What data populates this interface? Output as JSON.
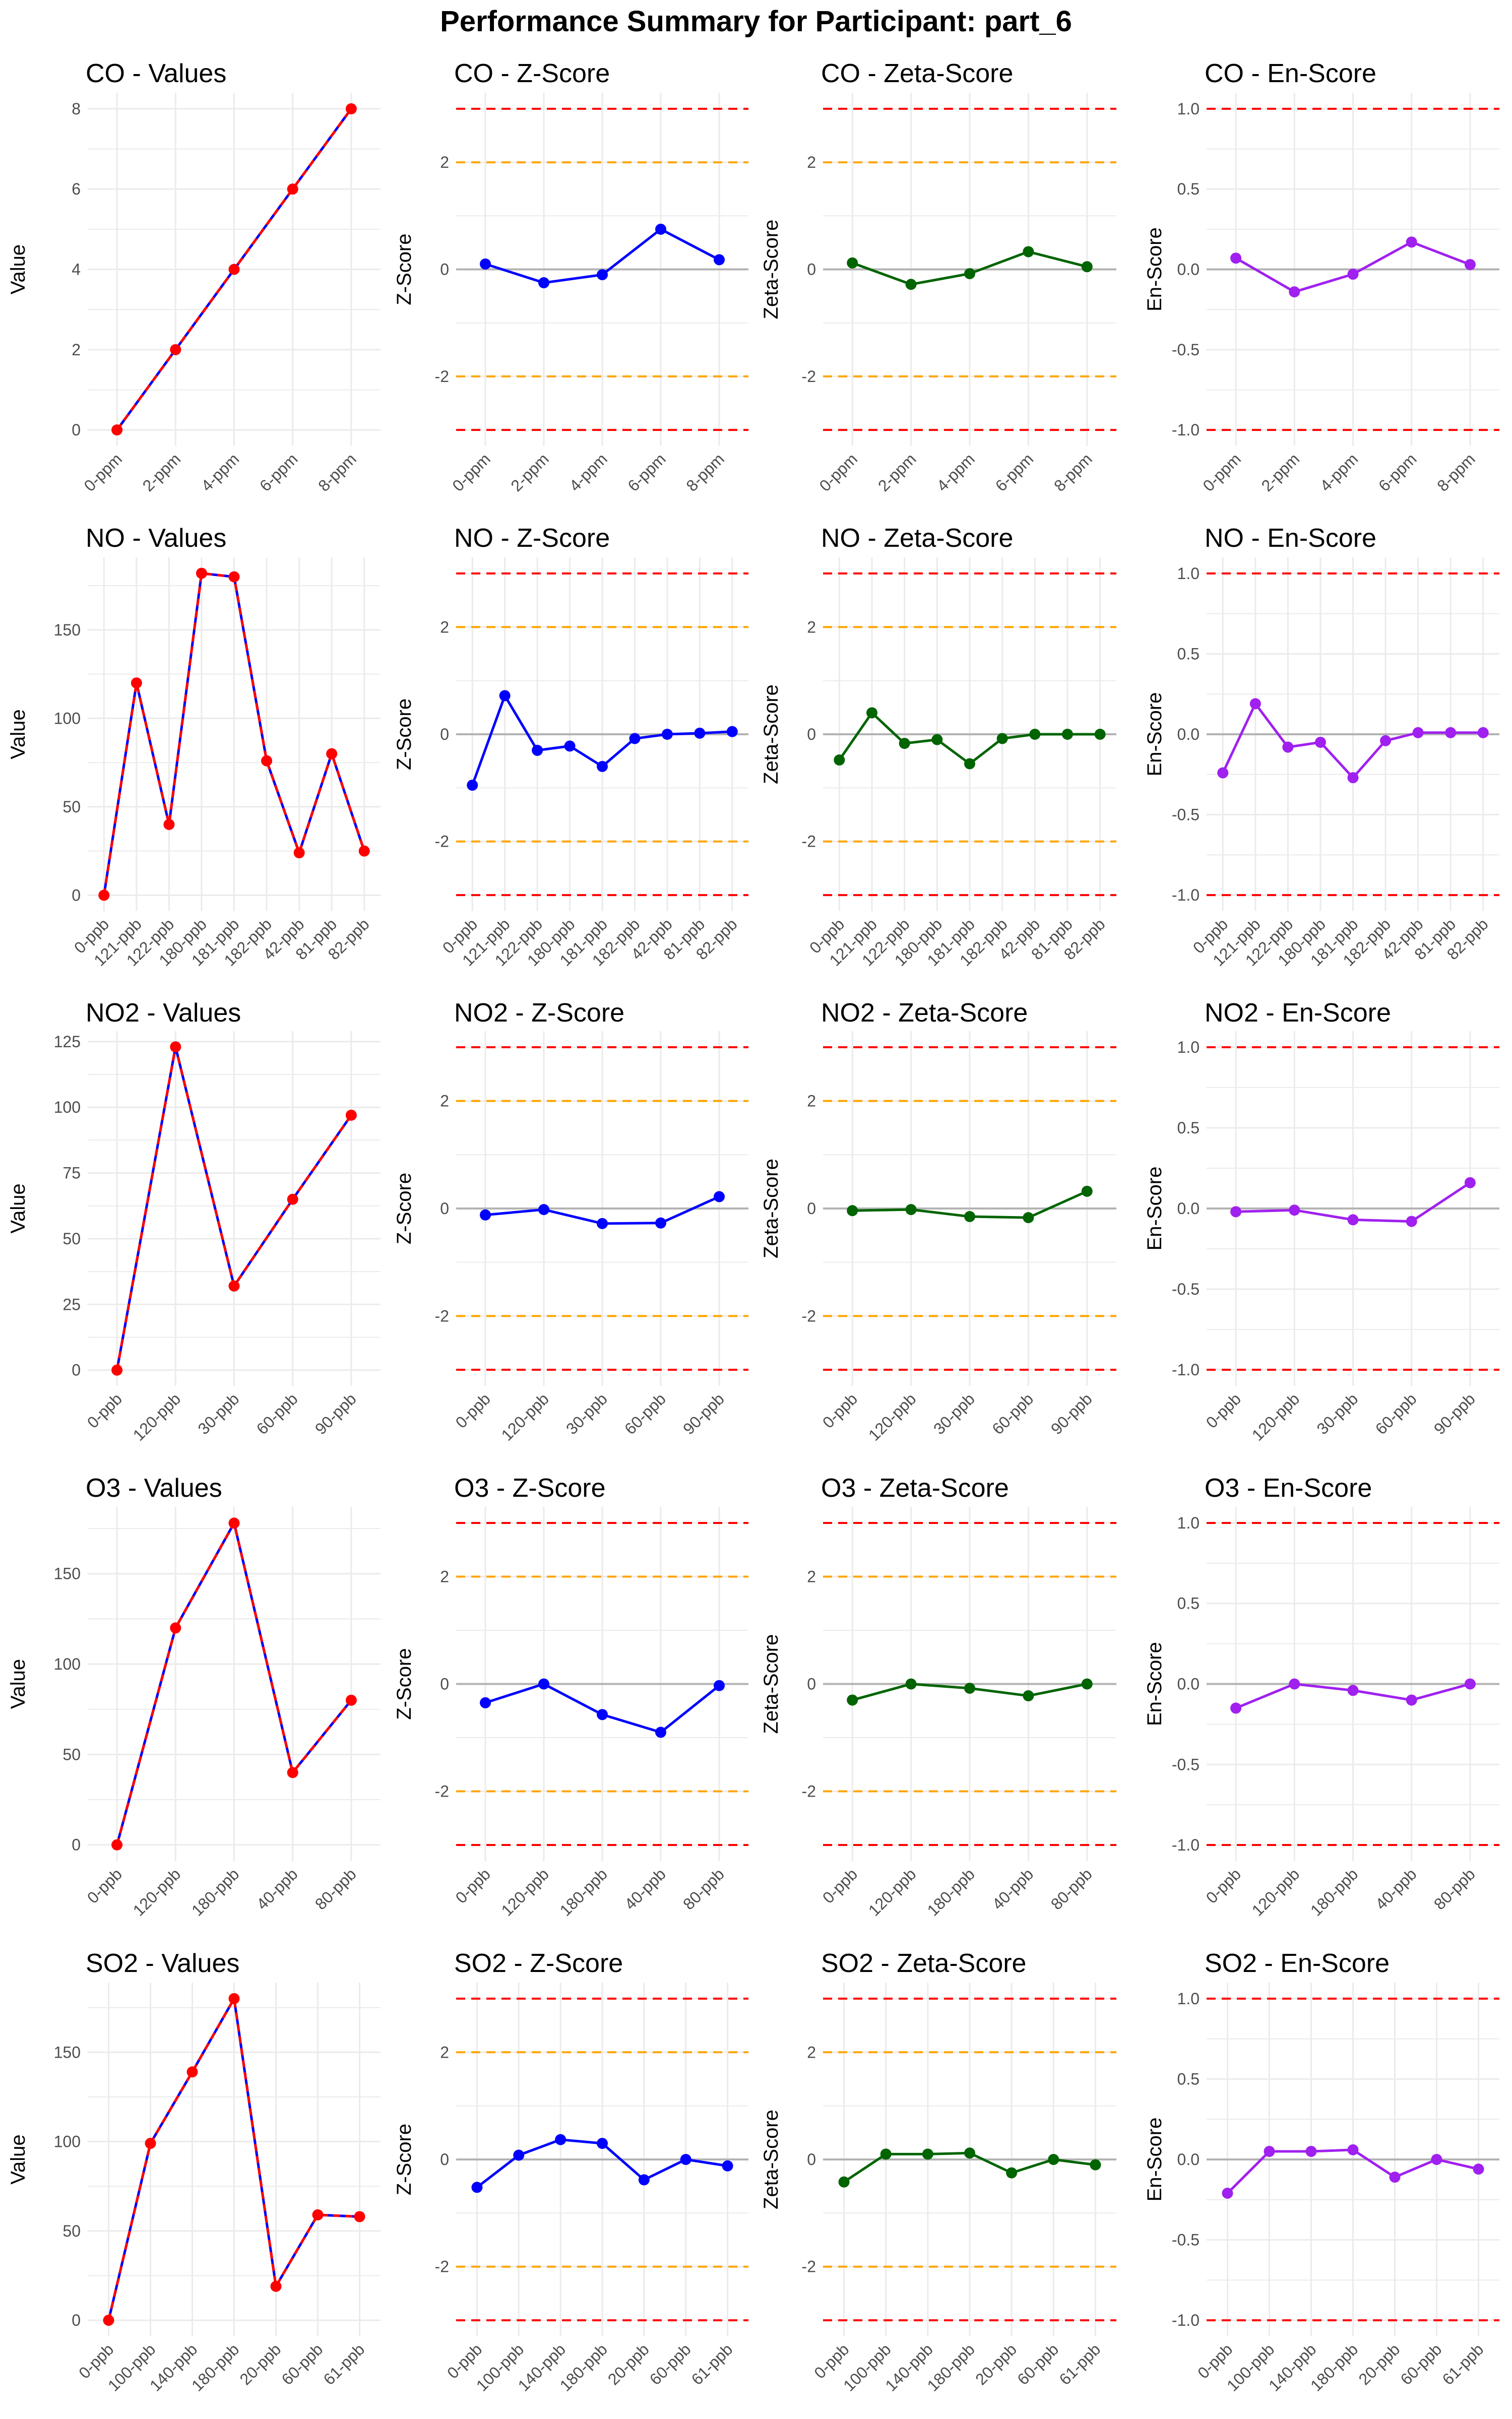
{
  "page_title": "Performance Summary for Participant: part_6",
  "colors": {
    "values_line": "#0000ff",
    "values_point": "#ff0000",
    "z_score": "#0000ff",
    "zeta_score": "#006400",
    "en_score": "#a020f0",
    "warning_line": "#ffa500",
    "action_line": "#ff0000",
    "zero_line": "#b3b3b3",
    "grid": "#ebebeb",
    "text": "#000000",
    "tick_text": "#4d4d4d"
  },
  "chart_data": [
    {
      "type": "line",
      "title": "CO - Values",
      "ylabel": "Value",
      "categories": [
        "0-ppm",
        "2-ppm",
        "4-ppm",
        "6-ppm",
        "8-ppm"
      ],
      "values": [
        0,
        2,
        4,
        6,
        8
      ],
      "ylim": [
        -0.4,
        8.4
      ],
      "yticks": [
        0,
        2,
        4,
        6,
        8
      ],
      "ytick_labels": [
        "0",
        "2",
        "4",
        "6",
        "8"
      ],
      "style": "values"
    },
    {
      "type": "line",
      "title": "CO - Z-Score",
      "ylabel": "Z-Score",
      "categories": [
        "0-ppm",
        "2-ppm",
        "4-ppm",
        "6-ppm",
        "8-ppm"
      ],
      "values": [
        0.1,
        -0.25,
        -0.1,
        0.75,
        0.18
      ],
      "ylim": [
        -3.3,
        3.3
      ],
      "yticks": [
        -2,
        0,
        2
      ],
      "ytick_labels": [
        "-2",
        "0",
        "2"
      ],
      "style": "z_score",
      "ref_lines": [
        {
          "y": 3,
          "kind": "action"
        },
        {
          "y": 2,
          "kind": "warning"
        },
        {
          "y": 0,
          "kind": "zero"
        },
        {
          "y": -2,
          "kind": "warning"
        },
        {
          "y": -3,
          "kind": "action"
        }
      ]
    },
    {
      "type": "line",
      "title": "CO - Zeta-Score",
      "ylabel": "Zeta-Score",
      "categories": [
        "0-ppm",
        "2-ppm",
        "4-ppm",
        "6-ppm",
        "8-ppm"
      ],
      "values": [
        0.12,
        -0.28,
        -0.08,
        0.33,
        0.05
      ],
      "ylim": [
        -3.3,
        3.3
      ],
      "yticks": [
        -2,
        0,
        2
      ],
      "ytick_labels": [
        "-2",
        "0",
        "2"
      ],
      "style": "zeta_score",
      "ref_lines": [
        {
          "y": 3,
          "kind": "action"
        },
        {
          "y": 2,
          "kind": "warning"
        },
        {
          "y": 0,
          "kind": "zero"
        },
        {
          "y": -2,
          "kind": "warning"
        },
        {
          "y": -3,
          "kind": "action"
        }
      ]
    },
    {
      "type": "line",
      "title": "CO - En-Score",
      "ylabel": "En-Score",
      "categories": [
        "0-ppm",
        "2-ppm",
        "4-ppm",
        "6-ppm",
        "8-ppm"
      ],
      "values": [
        0.07,
        -0.14,
        -0.03,
        0.17,
        0.03
      ],
      "ylim": [
        -1.1,
        1.1
      ],
      "yticks": [
        -1,
        -0.5,
        0,
        0.5,
        1
      ],
      "ytick_labels": [
        "-1.0",
        "-0.5",
        "0.0",
        "0.5",
        "1.0"
      ],
      "style": "en_score",
      "ref_lines": [
        {
          "y": 1,
          "kind": "action"
        },
        {
          "y": 0,
          "kind": "zero"
        },
        {
          "y": -1,
          "kind": "action"
        }
      ]
    },
    {
      "type": "line",
      "title": "NO - Values",
      "ylabel": "Value",
      "categories": [
        "0-ppb",
        "121-ppb",
        "122-ppb",
        "180-ppb",
        "181-ppb",
        "182-ppb",
        "42-ppb",
        "81-ppb",
        "82-ppb"
      ],
      "values": [
        0,
        120,
        40,
        182,
        180,
        76,
        24,
        80,
        25
      ],
      "ylim": [
        -9,
        191
      ],
      "yticks": [
        0,
        50,
        100,
        150
      ],
      "ytick_labels": [
        "0",
        "50",
        "100",
        "150"
      ],
      "style": "values"
    },
    {
      "type": "line",
      "title": "NO - Z-Score",
      "ylabel": "Z-Score",
      "categories": [
        "0-ppb",
        "121-ppb",
        "122-ppb",
        "180-ppb",
        "181-ppb",
        "182-ppb",
        "42-ppb",
        "81-ppb",
        "82-ppb"
      ],
      "values": [
        -0.95,
        0.72,
        -0.3,
        -0.22,
        -0.6,
        -0.08,
        0.0,
        0.02,
        0.05
      ],
      "ylim": [
        -3.3,
        3.3
      ],
      "yticks": [
        -2,
        0,
        2
      ],
      "ytick_labels": [
        "-2",
        "0",
        "2"
      ],
      "style": "z_score",
      "ref_lines": [
        {
          "y": 3,
          "kind": "action"
        },
        {
          "y": 2,
          "kind": "warning"
        },
        {
          "y": 0,
          "kind": "zero"
        },
        {
          "y": -2,
          "kind": "warning"
        },
        {
          "y": -3,
          "kind": "action"
        }
      ]
    },
    {
      "type": "line",
      "title": "NO - Zeta-Score",
      "ylabel": "Zeta-Score",
      "categories": [
        "0-ppb",
        "121-ppb",
        "122-ppb",
        "180-ppb",
        "181-ppb",
        "182-ppb",
        "42-ppb",
        "81-ppb",
        "82-ppb"
      ],
      "values": [
        -0.48,
        0.4,
        -0.17,
        -0.1,
        -0.55,
        -0.08,
        0.0,
        0.0,
        0.0
      ],
      "ylim": [
        -3.3,
        3.3
      ],
      "yticks": [
        -2,
        0,
        2
      ],
      "ytick_labels": [
        "-2",
        "0",
        "2"
      ],
      "style": "zeta_score",
      "ref_lines": [
        {
          "y": 3,
          "kind": "action"
        },
        {
          "y": 2,
          "kind": "warning"
        },
        {
          "y": 0,
          "kind": "zero"
        },
        {
          "y": -2,
          "kind": "warning"
        },
        {
          "y": -3,
          "kind": "action"
        }
      ]
    },
    {
      "type": "line",
      "title": "NO - En-Score",
      "ylabel": "En-Score",
      "categories": [
        "0-ppb",
        "121-ppb",
        "122-ppb",
        "180-ppb",
        "181-ppb",
        "182-ppb",
        "42-ppb",
        "81-ppb",
        "82-ppb"
      ],
      "values": [
        -0.24,
        0.19,
        -0.08,
        -0.05,
        -0.27,
        -0.04,
        0.01,
        0.01,
        0.01
      ],
      "ylim": [
        -1.1,
        1.1
      ],
      "yticks": [
        -1,
        -0.5,
        0,
        0.5,
        1
      ],
      "ytick_labels": [
        "-1.0",
        "-0.5",
        "0.0",
        "0.5",
        "1.0"
      ],
      "style": "en_score",
      "ref_lines": [
        {
          "y": 1,
          "kind": "action"
        },
        {
          "y": 0,
          "kind": "zero"
        },
        {
          "y": -1,
          "kind": "action"
        }
      ]
    },
    {
      "type": "line",
      "title": "NO2 - Values",
      "ylabel": "Value",
      "categories": [
        "0-ppb",
        "120-ppb",
        "30-ppb",
        "60-ppb",
        "90-ppb"
      ],
      "values": [
        0,
        123,
        32,
        65,
        97
      ],
      "ylim": [
        -6,
        129
      ],
      "yticks": [
        0,
        25,
        50,
        75,
        100,
        125
      ],
      "ytick_labels": [
        "0",
        "25",
        "50",
        "75",
        "100",
        "125"
      ],
      "style": "values"
    },
    {
      "type": "line",
      "title": "NO2 - Z-Score",
      "ylabel": "Z-Score",
      "categories": [
        "0-ppb",
        "120-ppb",
        "30-ppb",
        "60-ppb",
        "90-ppb"
      ],
      "values": [
        -0.12,
        -0.02,
        -0.28,
        -0.27,
        0.22
      ],
      "ylim": [
        -3.3,
        3.3
      ],
      "yticks": [
        -2,
        0,
        2
      ],
      "ytick_labels": [
        "-2",
        "0",
        "2"
      ],
      "style": "z_score",
      "ref_lines": [
        {
          "y": 3,
          "kind": "action"
        },
        {
          "y": 2,
          "kind": "warning"
        },
        {
          "y": 0,
          "kind": "zero"
        },
        {
          "y": -2,
          "kind": "warning"
        },
        {
          "y": -3,
          "kind": "action"
        }
      ]
    },
    {
      "type": "line",
      "title": "NO2 - Zeta-Score",
      "ylabel": "Zeta-Score",
      "categories": [
        "0-ppb",
        "120-ppb",
        "30-ppb",
        "60-ppb",
        "90-ppb"
      ],
      "values": [
        -0.04,
        -0.02,
        -0.15,
        -0.17,
        0.32
      ],
      "ylim": [
        -3.3,
        3.3
      ],
      "yticks": [
        -2,
        0,
        2
      ],
      "ytick_labels": [
        "-2",
        "0",
        "2"
      ],
      "style": "zeta_score",
      "ref_lines": [
        {
          "y": 3,
          "kind": "action"
        },
        {
          "y": 2,
          "kind": "warning"
        },
        {
          "y": 0,
          "kind": "zero"
        },
        {
          "y": -2,
          "kind": "warning"
        },
        {
          "y": -3,
          "kind": "action"
        }
      ]
    },
    {
      "type": "line",
      "title": "NO2 - En-Score",
      "ylabel": "En-Score",
      "categories": [
        "0-ppb",
        "120-ppb",
        "30-ppb",
        "60-ppb",
        "90-ppb"
      ],
      "values": [
        -0.02,
        -0.01,
        -0.07,
        -0.08,
        0.16
      ],
      "ylim": [
        -1.1,
        1.1
      ],
      "yticks": [
        -1,
        -0.5,
        0,
        0.5,
        1
      ],
      "ytick_labels": [
        "-1.0",
        "-0.5",
        "0.0",
        "0.5",
        "1.0"
      ],
      "style": "en_score",
      "ref_lines": [
        {
          "y": 1,
          "kind": "action"
        },
        {
          "y": 0,
          "kind": "zero"
        },
        {
          "y": -1,
          "kind": "action"
        }
      ]
    },
    {
      "type": "line",
      "title": "O3 - Values",
      "ylabel": "Value",
      "categories": [
        "0-ppb",
        "120-ppb",
        "180-ppb",
        "40-ppb",
        "80-ppb"
      ],
      "values": [
        0,
        120,
        178,
        40,
        80
      ],
      "ylim": [
        -9,
        187
      ],
      "yticks": [
        0,
        50,
        100,
        150
      ],
      "ytick_labels": [
        "0",
        "50",
        "100",
        "150"
      ],
      "style": "values"
    },
    {
      "type": "line",
      "title": "O3 - Z-Score",
      "ylabel": "Z-Score",
      "categories": [
        "0-ppb",
        "120-ppb",
        "180-ppb",
        "40-ppb",
        "80-ppb"
      ],
      "values": [
        -0.35,
        0.0,
        -0.57,
        -0.9,
        -0.03
      ],
      "ylim": [
        -3.3,
        3.3
      ],
      "yticks": [
        -2,
        0,
        2
      ],
      "ytick_labels": [
        "-2",
        "0",
        "2"
      ],
      "style": "z_score",
      "ref_lines": [
        {
          "y": 3,
          "kind": "action"
        },
        {
          "y": 2,
          "kind": "warning"
        },
        {
          "y": 0,
          "kind": "zero"
        },
        {
          "y": -2,
          "kind": "warning"
        },
        {
          "y": -3,
          "kind": "action"
        }
      ]
    },
    {
      "type": "line",
      "title": "O3 - Zeta-Score",
      "ylabel": "Zeta-Score",
      "categories": [
        "0-ppb",
        "120-ppb",
        "180-ppb",
        "40-ppb",
        "80-ppb"
      ],
      "values": [
        -0.3,
        0.0,
        -0.08,
        -0.22,
        0.0
      ],
      "ylim": [
        -3.3,
        3.3
      ],
      "yticks": [
        -2,
        0,
        2
      ],
      "ytick_labels": [
        "-2",
        "0",
        "2"
      ],
      "style": "zeta_score",
      "ref_lines": [
        {
          "y": 3,
          "kind": "action"
        },
        {
          "y": 2,
          "kind": "warning"
        },
        {
          "y": 0,
          "kind": "zero"
        },
        {
          "y": -2,
          "kind": "warning"
        },
        {
          "y": -3,
          "kind": "action"
        }
      ]
    },
    {
      "type": "line",
      "title": "O3 - En-Score",
      "ylabel": "En-Score",
      "categories": [
        "0-ppb",
        "120-ppb",
        "180-ppb",
        "40-ppb",
        "80-ppb"
      ],
      "values": [
        -0.15,
        0.0,
        -0.04,
        -0.1,
        0.0
      ],
      "ylim": [
        -1.1,
        1.1
      ],
      "yticks": [
        -1,
        -0.5,
        0,
        0.5,
        1
      ],
      "ytick_labels": [
        "-1.0",
        "-0.5",
        "0.0",
        "0.5",
        "1.0"
      ],
      "style": "en_score",
      "ref_lines": [
        {
          "y": 1,
          "kind": "action"
        },
        {
          "y": 0,
          "kind": "zero"
        },
        {
          "y": -1,
          "kind": "action"
        }
      ]
    },
    {
      "type": "line",
      "title": "SO2 - Values",
      "ylabel": "Value",
      "categories": [
        "0-ppb",
        "100-ppb",
        "140-ppb",
        "180-ppb",
        "20-ppb",
        "60-ppb",
        "61-ppb"
      ],
      "values": [
        0,
        99,
        139,
        180,
        19,
        59,
        58
      ],
      "ylim": [
        -9,
        189
      ],
      "yticks": [
        0,
        50,
        100,
        150
      ],
      "ytick_labels": [
        "0",
        "50",
        "100",
        "150"
      ],
      "style": "values"
    },
    {
      "type": "line",
      "title": "SO2 - Z-Score",
      "ylabel": "Z-Score",
      "categories": [
        "0-ppb",
        "100-ppb",
        "140-ppb",
        "180-ppb",
        "20-ppb",
        "60-ppb",
        "61-ppb"
      ],
      "values": [
        -0.52,
        0.08,
        0.37,
        0.3,
        -0.38,
        0.0,
        -0.12
      ],
      "ylim": [
        -3.3,
        3.3
      ],
      "yticks": [
        -2,
        0,
        2
      ],
      "ytick_labels": [
        "-2",
        "0",
        "2"
      ],
      "style": "z_score",
      "ref_lines": [
        {
          "y": 3,
          "kind": "action"
        },
        {
          "y": 2,
          "kind": "warning"
        },
        {
          "y": 0,
          "kind": "zero"
        },
        {
          "y": -2,
          "kind": "warning"
        },
        {
          "y": -3,
          "kind": "action"
        }
      ]
    },
    {
      "type": "line",
      "title": "SO2 - Zeta-Score",
      "ylabel": "Zeta-Score",
      "categories": [
        "0-ppb",
        "100-ppb",
        "140-ppb",
        "180-ppb",
        "20-ppb",
        "60-ppb",
        "61-ppb"
      ],
      "values": [
        -0.42,
        0.1,
        0.1,
        0.12,
        -0.25,
        0.0,
        -0.1
      ],
      "ylim": [
        -3.3,
        3.3
      ],
      "yticks": [
        -2,
        0,
        2
      ],
      "ytick_labels": [
        "-2",
        "0",
        "2"
      ],
      "style": "zeta_score",
      "ref_lines": [
        {
          "y": 3,
          "kind": "action"
        },
        {
          "y": 2,
          "kind": "warning"
        },
        {
          "y": 0,
          "kind": "zero"
        },
        {
          "y": -2,
          "kind": "warning"
        },
        {
          "y": -3,
          "kind": "action"
        }
      ]
    },
    {
      "type": "line",
      "title": "SO2 - En-Score",
      "ylabel": "En-Score",
      "categories": [
        "0-ppb",
        "100-ppb",
        "140-ppb",
        "180-ppb",
        "20-ppb",
        "60-ppb",
        "61-ppb"
      ],
      "values": [
        -0.21,
        0.05,
        0.05,
        0.06,
        -0.11,
        0.0,
        -0.06
      ],
      "ylim": [
        -1.1,
        1.1
      ],
      "yticks": [
        -1,
        -0.5,
        0,
        0.5,
        1
      ],
      "ytick_labels": [
        "-1.0",
        "-0.5",
        "0.0",
        "0.5",
        "1.0"
      ],
      "style": "en_score",
      "ref_lines": [
        {
          "y": 1,
          "kind": "action"
        },
        {
          "y": 0,
          "kind": "zero"
        },
        {
          "y": -1,
          "kind": "action"
        }
      ]
    }
  ]
}
